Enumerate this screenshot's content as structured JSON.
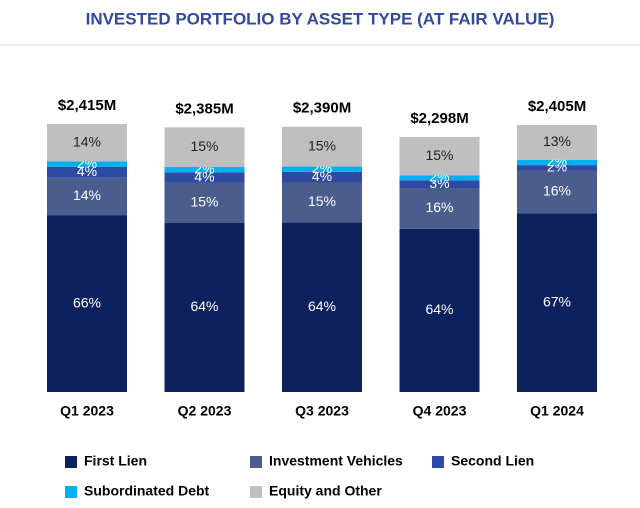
{
  "chart_data": {
    "type": "stacked_bar",
    "title": "INVESTED PORTFOLIO BY ASSET TYPE (AT FAIR VALUE)",
    "categories": [
      "Q1 2023",
      "Q2 2023",
      "Q3 2023",
      "Q4 2023",
      "Q1 2024"
    ],
    "totals": {
      "values": [
        2415,
        2385,
        2390,
        2298,
        2405
      ],
      "value_labels": [
        "$2,415M",
        "$2,385M",
        "$2,390M",
        "$2,298M",
        "$2,405M"
      ]
    },
    "series": [
      {
        "name": "First Lien",
        "color": "#0d215e",
        "values": [
          66,
          64,
          64,
          64,
          67
        ],
        "value_labels": [
          "66%",
          "64%",
          "64%",
          "64%",
          "67%"
        ]
      },
      {
        "name": "Investment Vehicles",
        "color": "#4a5d8c",
        "values": [
          14,
          15,
          15,
          16,
          16
        ],
        "value_labels": [
          "14%",
          "15%",
          "15%",
          "16%",
          "16%"
        ]
      },
      {
        "name": "Second Lien",
        "color": "#2f4aa3",
        "values": [
          4,
          4,
          4,
          3,
          2
        ],
        "value_labels": [
          "4%",
          "4%",
          "4%",
          "3%",
          "2%"
        ]
      },
      {
        "name": "Subordinated Debt",
        "color": "#00b0f0",
        "values": [
          2,
          2,
          2,
          2,
          2
        ],
        "value_labels": [
          "2%",
          "2%",
          "2%",
          "2%",
          "2%"
        ]
      },
      {
        "name": "Equity and Other",
        "color": "#bfbfbf",
        "values": [
          14,
          15,
          15,
          15,
          13
        ],
        "value_labels": [
          "14%",
          "15%",
          "15%",
          "15%",
          "13%"
        ]
      }
    ]
  }
}
